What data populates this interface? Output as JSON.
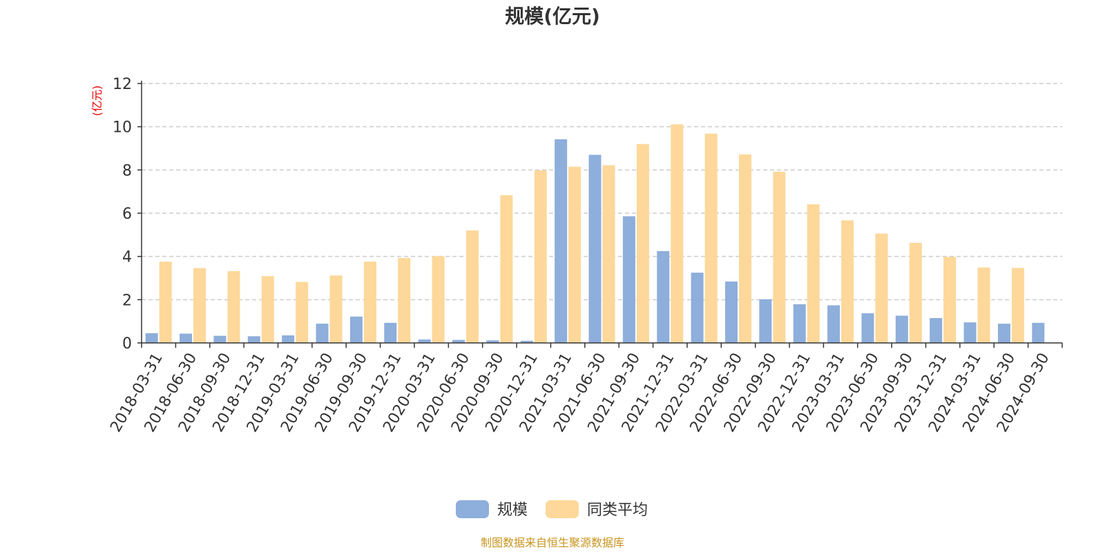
{
  "chart_data": {
    "type": "bar",
    "title": "规模(亿元)",
    "ylabel": "(亿元)",
    "ylim": [
      0,
      12
    ],
    "yticks": [
      0,
      2,
      4,
      6,
      8,
      10,
      12
    ],
    "grid": true,
    "legend_position": "bottom-center",
    "categories": [
      "2018-03-31",
      "2018-06-30",
      "2018-09-30",
      "2018-12-31",
      "2019-03-31",
      "2019-06-30",
      "2019-09-30",
      "2019-12-31",
      "2020-03-31",
      "2020-06-30",
      "2020-09-30",
      "2020-12-31",
      "2021-03-31",
      "2021-06-30",
      "2021-09-30",
      "2021-12-31",
      "2022-03-31",
      "2022-06-30",
      "2022-09-30",
      "2022-12-31",
      "2023-03-31",
      "2023-06-30",
      "2023-09-30",
      "2023-12-31",
      "2024-03-31",
      "2024-06-30",
      "2024-09-30"
    ],
    "series": [
      {
        "name": "规模",
        "color": "#8eaedb",
        "values": [
          0.45,
          0.43,
          0.33,
          0.31,
          0.35,
          0.89,
          1.22,
          0.93,
          0.16,
          0.14,
          0.12,
          0.1,
          9.42,
          8.7,
          5.86,
          4.25,
          3.25,
          2.84,
          2.02,
          1.79,
          1.74,
          1.37,
          1.26,
          1.15,
          0.95,
          0.89,
          0.93
        ]
      },
      {
        "name": "同类平均",
        "color": "#fdd89a",
        "values": [
          3.76,
          3.46,
          3.32,
          3.09,
          2.82,
          3.12,
          3.76,
          3.93,
          4.01,
          5.2,
          6.83,
          7.98,
          8.15,
          8.22,
          9.2,
          10.11,
          9.68,
          8.72,
          7.92,
          6.41,
          5.67,
          5.06,
          4.63,
          3.98,
          3.49,
          3.47,
          null
        ]
      }
    ]
  },
  "footer": {
    "source": "制图数据来自恒生聚源数据库"
  }
}
